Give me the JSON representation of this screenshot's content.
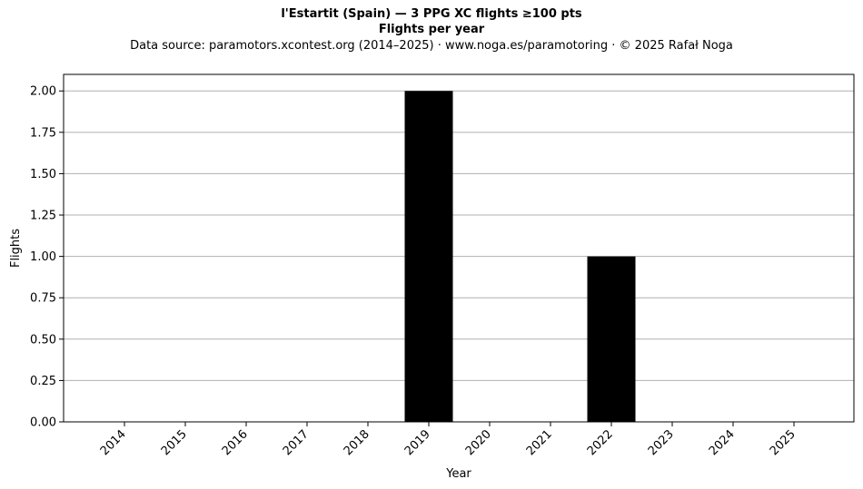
{
  "chart_data": {
    "type": "bar",
    "title": "l'Estartit (Spain)  —  3 PPG XC flights ≥100 pts",
    "subtitle": "Flights per year",
    "source_note": "Data source: paramotors.xcontest.org (2014–2025)  ·  www.noga.es/paramotoring  ·  © 2025 Rafał Noga",
    "xlabel": "Year",
    "ylabel": "Flights",
    "categories": [
      "2014",
      "2015",
      "2016",
      "2017",
      "2018",
      "2019",
      "2020",
      "2021",
      "2022",
      "2023",
      "2024",
      "2025"
    ],
    "values": [
      0,
      0,
      0,
      0,
      0,
      2,
      0,
      0,
      1,
      0,
      0,
      0
    ],
    "ylim": [
      0,
      2.1
    ],
    "yticks": [
      "0.00",
      "0.25",
      "0.50",
      "0.75",
      "1.00",
      "1.25",
      "1.50",
      "1.75",
      "2.00"
    ],
    "bar_color": "#000000",
    "grid": "horizontal",
    "grid_color": "#b0b0b0"
  }
}
